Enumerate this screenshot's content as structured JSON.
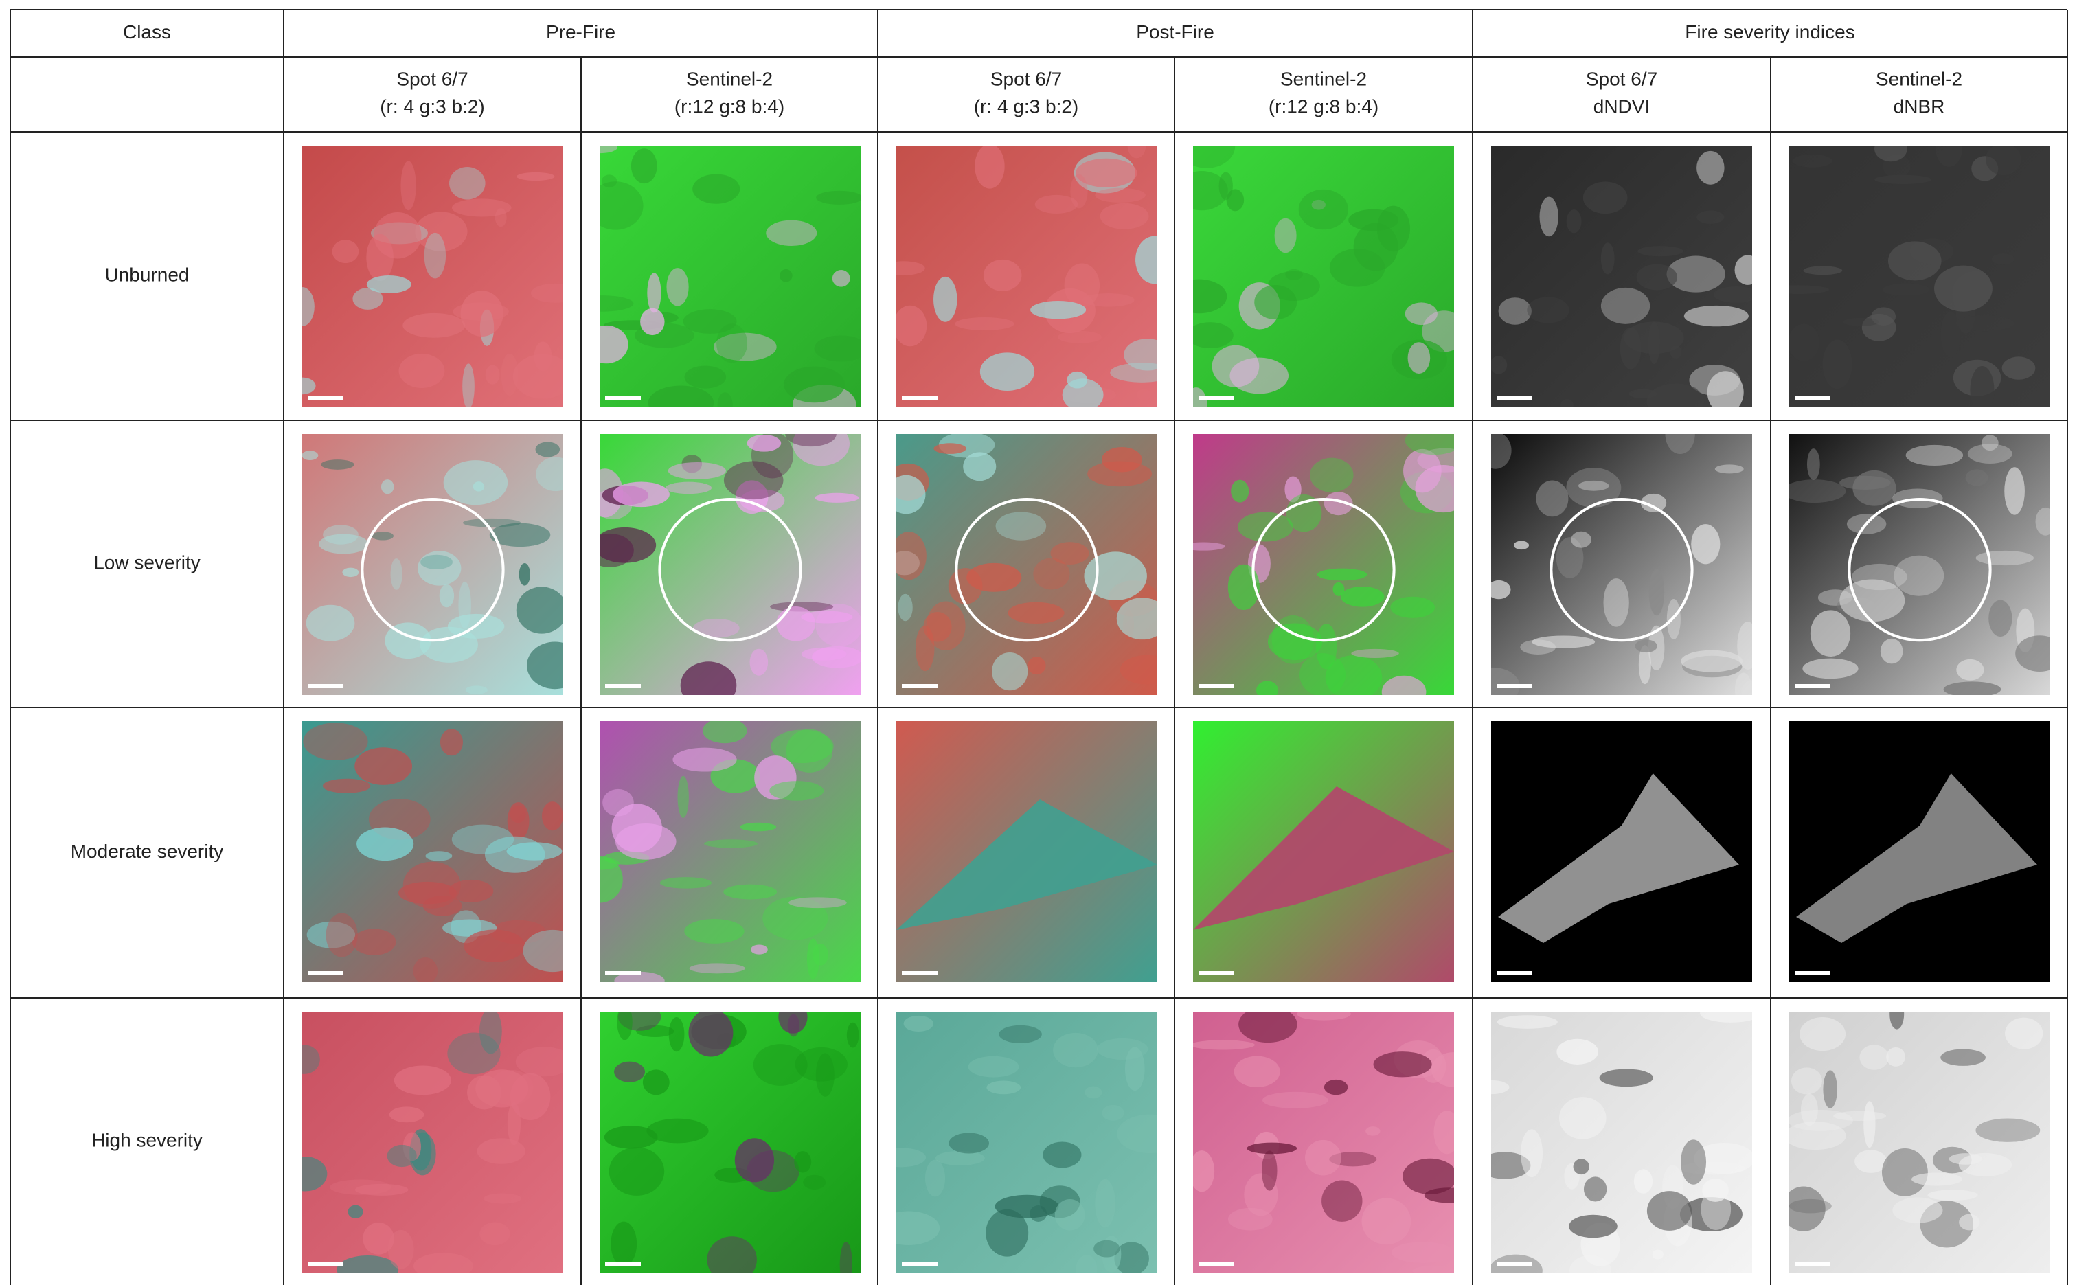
{
  "header": {
    "row1": [
      "Class",
      "Pre-Fire",
      "Post-Fire",
      "Fire severity indices"
    ],
    "row2": [
      [
        "Spot 6/7",
        "(r: 4 g:3 b:2)"
      ],
      [
        "Sentinel-2",
        "(r:12 g:8 b:4)"
      ],
      [
        "Spot 6/7",
        "(r: 4 g:3 b:2)"
      ],
      [
        "Sentinel-2",
        "(r:12 g:8 b:4)"
      ],
      [
        "Spot 6/7",
        "dNDVI"
      ],
      [
        "Sentinel-2",
        "dNBR"
      ]
    ]
  },
  "rows": [
    "Unburned",
    "Low severity",
    "Moderate severity",
    "High severity"
  ]
}
